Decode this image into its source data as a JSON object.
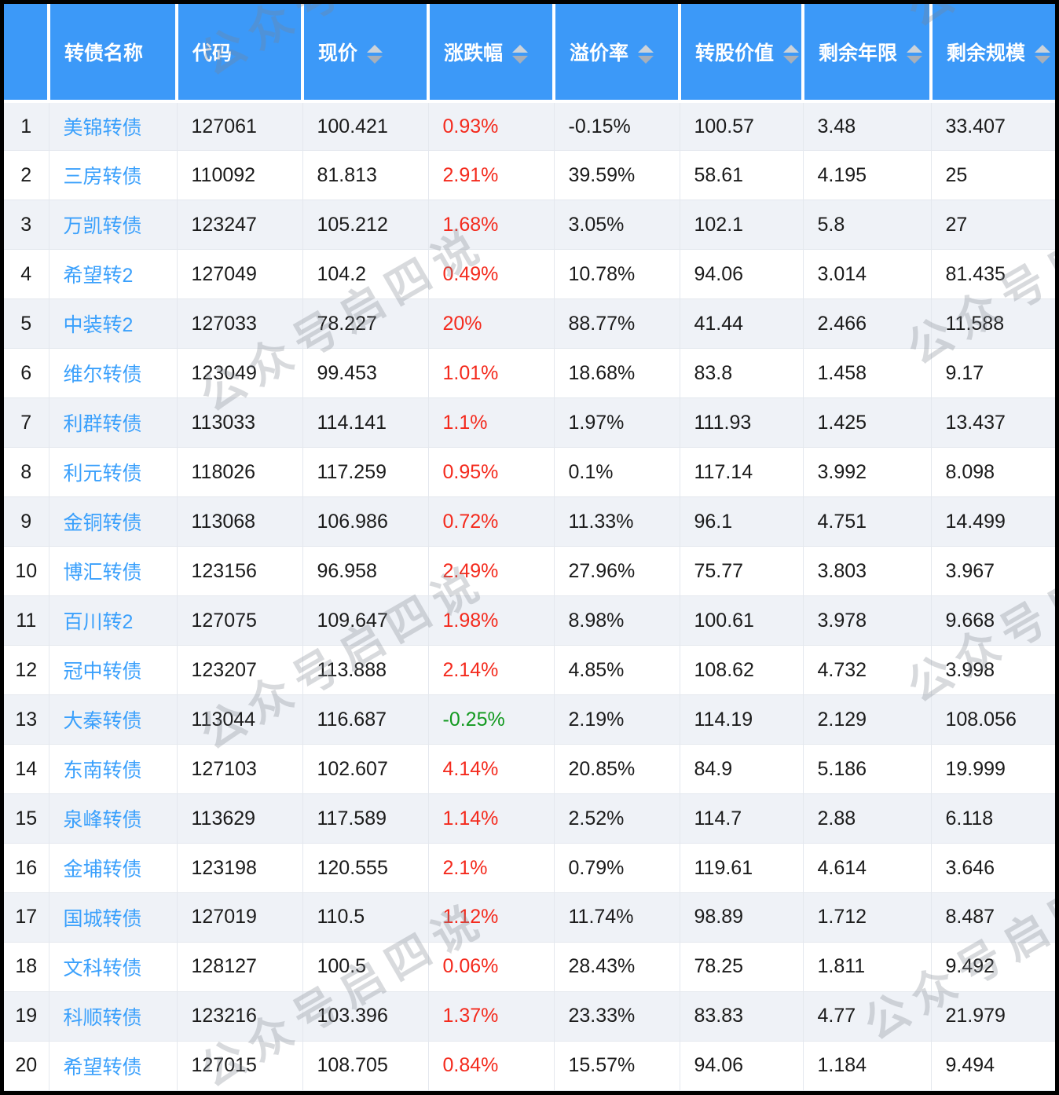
{
  "watermark": {
    "text": "公众号启四说"
  },
  "colors": {
    "header_bg": "#3c99f8",
    "bond_name": "#3aa0fc",
    "up_red": "#f42a1d",
    "down_green": "#12991f",
    "row_alt_bg": "#eff2f7"
  },
  "table": {
    "columns": [
      {
        "label": "",
        "sortable": false
      },
      {
        "label": "转债名称",
        "sortable": false
      },
      {
        "label": "代码",
        "sortable": false
      },
      {
        "label": "现价",
        "sortable": true
      },
      {
        "label": "涨跌幅",
        "sortable": true
      },
      {
        "label": "溢价率",
        "sortable": true
      },
      {
        "label": "转股价值",
        "sortable": true
      },
      {
        "label": "剩余年限",
        "sortable": true
      },
      {
        "label": "剩余规模",
        "sortable": true
      }
    ],
    "rows": [
      {
        "index": "1",
        "name": "美锦转债",
        "code": "127061",
        "price": "100.421",
        "change": "0.93%",
        "change_dir": "up",
        "premium": "-0.15%",
        "conv_value": "100.57",
        "years": "3.48",
        "size": "33.407"
      },
      {
        "index": "2",
        "name": "三房转债",
        "code": "110092",
        "price": "81.813",
        "change": "2.91%",
        "change_dir": "up",
        "premium": "39.59%",
        "conv_value": "58.61",
        "years": "4.195",
        "size": "25"
      },
      {
        "index": "3",
        "name": "万凯转债",
        "code": "123247",
        "price": "105.212",
        "change": "1.68%",
        "change_dir": "up",
        "premium": "3.05%",
        "conv_value": "102.1",
        "years": "5.8",
        "size": "27"
      },
      {
        "index": "4",
        "name": "希望转2",
        "code": "127049",
        "price": "104.2",
        "change": "0.49%",
        "change_dir": "up",
        "premium": "10.78%",
        "conv_value": "94.06",
        "years": "3.014",
        "size": "81.435"
      },
      {
        "index": "5",
        "name": "中装转2",
        "code": "127033",
        "price": "78.227",
        "change": "20%",
        "change_dir": "up",
        "premium": "88.77%",
        "conv_value": "41.44",
        "years": "2.466",
        "size": "11.588"
      },
      {
        "index": "6",
        "name": "维尔转债",
        "code": "123049",
        "price": "99.453",
        "change": "1.01%",
        "change_dir": "up",
        "premium": "18.68%",
        "conv_value": "83.8",
        "years": "1.458",
        "size": "9.17"
      },
      {
        "index": "7",
        "name": "利群转债",
        "code": "113033",
        "price": "114.141",
        "change": "1.1%",
        "change_dir": "up",
        "premium": "1.97%",
        "conv_value": "111.93",
        "years": "1.425",
        "size": "13.437"
      },
      {
        "index": "8",
        "name": "利元转债",
        "code": "118026",
        "price": "117.259",
        "change": "0.95%",
        "change_dir": "up",
        "premium": "0.1%",
        "conv_value": "117.14",
        "years": "3.992",
        "size": "8.098"
      },
      {
        "index": "9",
        "name": "金铜转债",
        "code": "113068",
        "price": "106.986",
        "change": "0.72%",
        "change_dir": "up",
        "premium": "11.33%",
        "conv_value": "96.1",
        "years": "4.751",
        "size": "14.499"
      },
      {
        "index": "10",
        "name": "博汇转债",
        "code": "123156",
        "price": "96.958",
        "change": "2.49%",
        "change_dir": "up",
        "premium": "27.96%",
        "conv_value": "75.77",
        "years": "3.803",
        "size": "3.967"
      },
      {
        "index": "11",
        "name": "百川转2",
        "code": "127075",
        "price": "109.647",
        "change": "1.98%",
        "change_dir": "up",
        "premium": "8.98%",
        "conv_value": "100.61",
        "years": "3.978",
        "size": "9.668"
      },
      {
        "index": "12",
        "name": "冠中转债",
        "code": "123207",
        "price": "113.888",
        "change": "2.14%",
        "change_dir": "up",
        "premium": "4.85%",
        "conv_value": "108.62",
        "years": "4.732",
        "size": "3.998"
      },
      {
        "index": "13",
        "name": "大秦转债",
        "code": "113044",
        "price": "116.687",
        "change": "-0.25%",
        "change_dir": "down",
        "premium": "2.19%",
        "conv_value": "114.19",
        "years": "2.129",
        "size": "108.056"
      },
      {
        "index": "14",
        "name": "东南转债",
        "code": "127103",
        "price": "102.607",
        "change": "4.14%",
        "change_dir": "up",
        "premium": "20.85%",
        "conv_value": "84.9",
        "years": "5.186",
        "size": "19.999"
      },
      {
        "index": "15",
        "name": "泉峰转债",
        "code": "113629",
        "price": "117.589",
        "change": "1.14%",
        "change_dir": "up",
        "premium": "2.52%",
        "conv_value": "114.7",
        "years": "2.88",
        "size": "6.118"
      },
      {
        "index": "16",
        "name": "金埔转债",
        "code": "123198",
        "price": "120.555",
        "change": "2.1%",
        "change_dir": "up",
        "premium": "0.79%",
        "conv_value": "119.61",
        "years": "4.614",
        "size": "3.646"
      },
      {
        "index": "17",
        "name": "国城转债",
        "code": "127019",
        "price": "110.5",
        "change": "1.12%",
        "change_dir": "up",
        "premium": "11.74%",
        "conv_value": "98.89",
        "years": "1.712",
        "size": "8.487"
      },
      {
        "index": "18",
        "name": "文科转债",
        "code": "128127",
        "price": "100.5",
        "change": "0.06%",
        "change_dir": "up",
        "premium": "28.43%",
        "conv_value": "78.25",
        "years": "1.811",
        "size": "9.492"
      },
      {
        "index": "19",
        "name": "科顺转债",
        "code": "123216",
        "price": "103.396",
        "change": "1.37%",
        "change_dir": "up",
        "premium": "23.33%",
        "conv_value": "83.83",
        "years": "4.77",
        "size": "21.979"
      },
      {
        "index": "20",
        "name": "希望转债",
        "code": "127015",
        "price": "108.705",
        "change": "0.84%",
        "change_dir": "up",
        "premium": "15.57%",
        "conv_value": "94.06",
        "years": "1.184",
        "size": "9.494"
      }
    ]
  }
}
